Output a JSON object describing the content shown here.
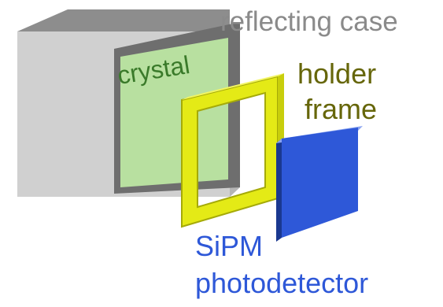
{
  "labels": {
    "reflecting_case": "reflecting case",
    "crystal": "crystal",
    "holder_line1": "holder",
    "holder_line2": "frame",
    "sipm_line1": "SiPM",
    "sipm_line2": "photodetector"
  },
  "colors": {
    "case_front": "#d0d0d0",
    "case_top": "#8d8d8d",
    "case_side": "#6e6e6e",
    "crystal": "#b8e0a0",
    "frame": "#e4ea16",
    "frame_edge": "#a5aa08",
    "sipm": "#2e58d8",
    "sipm_edge": "#1a3890",
    "label_case": "#8a8a8a",
    "label_crystal": "#3a7a2a",
    "label_holder": "#66660a",
    "label_sipm": "#2e58d8"
  }
}
